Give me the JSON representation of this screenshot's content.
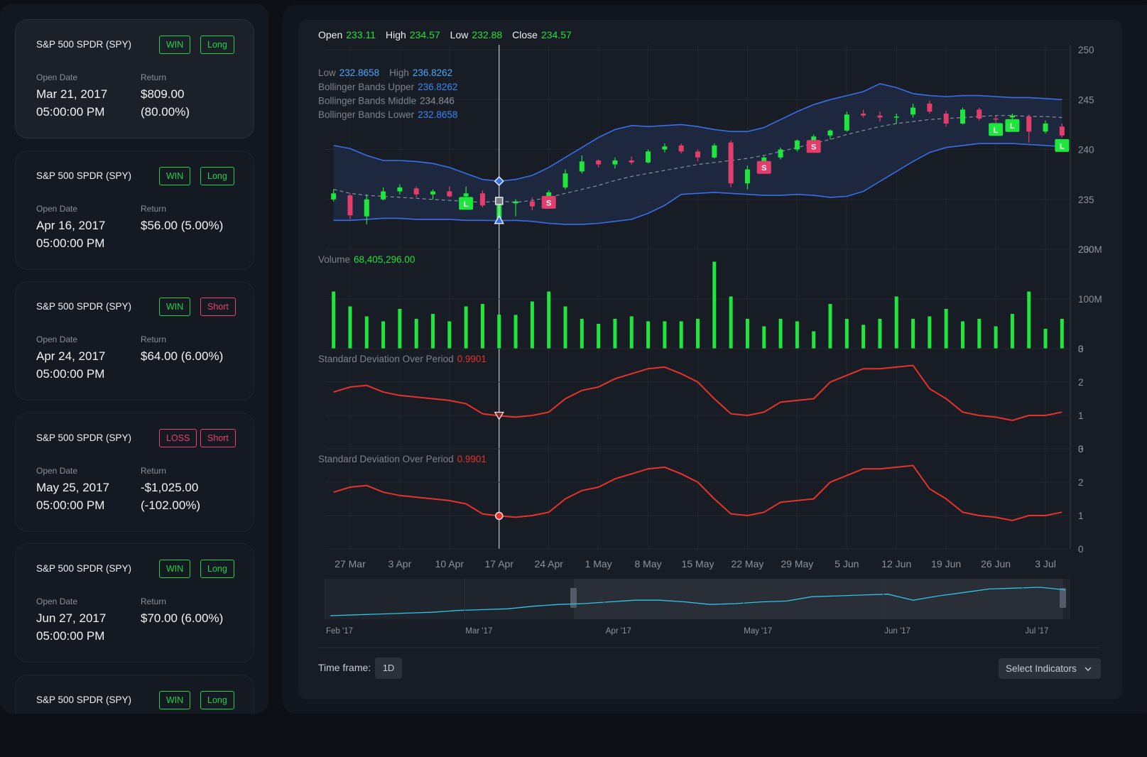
{
  "sidebar": {
    "trades": [
      {
        "instrument": "S&P 500 SPDR (SPY)",
        "result": "WIN",
        "result_color": "#22d34a",
        "side": "Long",
        "side_color": "#22d34a",
        "open_date_label": "Open Date",
        "date": "Mar 21, 2017",
        "time": "05:00:00 PM",
        "return_label": "Return",
        "return": "$809.00 (80.00%)"
      },
      {
        "instrument": "S&P 500 SPDR (SPY)",
        "result": "WIN",
        "result_color": "#22d34a",
        "side": "Long",
        "side_color": "#22d34a",
        "open_date_label": "Open Date",
        "date": "Apr 16, 2017",
        "time": "05:00:00 PM",
        "return_label": "Return",
        "return": "$56.00 (5.00%)"
      },
      {
        "instrument": "S&P 500 SPDR (SPY)",
        "result": "WIN",
        "result_color": "#22d34a",
        "side": "Short",
        "side_color": "#e8426e",
        "open_date_label": "Open Date",
        "date": "Apr 24, 2017",
        "time": "05:00:00 PM",
        "return_label": "Return",
        "return": "$64.00 (6.00%)"
      },
      {
        "instrument": "S&P 500 SPDR (SPY)",
        "result": "LOSS",
        "result_color": "#e8426e",
        "side": "Short",
        "side_color": "#e8426e",
        "open_date_label": "Open Date",
        "date": "May 25, 2017",
        "time": "05:00:00 PM",
        "return_label": "Return",
        "return": "-$1,025.00 (-102.00%)"
      },
      {
        "instrument": "S&P 500 SPDR (SPY)",
        "result": "WIN",
        "result_color": "#22d34a",
        "side": "Long",
        "side_color": "#22d34a",
        "open_date_label": "Open Date",
        "date": "Jun 27, 2017",
        "time": "05:00:00 PM",
        "return_label": "Return",
        "return": "$70.00 (6.00%)"
      },
      {
        "instrument": "S&P 500 SPDR (SPY)",
        "result": "WIN",
        "result_color": "#22d34a",
        "side": "Long",
        "side_color": "#22d34a"
      }
    ]
  },
  "chart_data": [
    {
      "type": "candlestick",
      "ohlc_labels": [
        "Open",
        "High",
        "Low",
        "Close"
      ],
      "band_labels": [
        "Low",
        "High"
      ],
      "categories": [
        null,
        "27 Mar",
        null,
        null,
        "3 Apr",
        null,
        null,
        "10 Apr",
        null,
        null,
        "17 Apr",
        null,
        null,
        "24 Apr",
        null,
        null,
        "1 May",
        null,
        null,
        "8 May",
        null,
        null,
        "15 May",
        null,
        null,
        "22 May",
        null,
        null,
        "29 May",
        null,
        null,
        "5 Jun",
        null,
        null,
        "12 Jun",
        null,
        null,
        "19 Jun",
        null,
        null,
        "26 Jun",
        null,
        null,
        "3 Jul",
        null
      ],
      "ohlc": [
        [
          235.0,
          236.0,
          234.8,
          235.6
        ],
        [
          235.4,
          235.6,
          233.0,
          233.4
        ],
        [
          233.3,
          235.5,
          232.5,
          235.0
        ],
        [
          235.0,
          236.2,
          234.9,
          235.8
        ],
        [
          235.8,
          236.5,
          235.5,
          236.2
        ],
        [
          236.1,
          236.3,
          235.2,
          235.5
        ],
        [
          235.5,
          236.0,
          235.0,
          235.8
        ],
        [
          235.8,
          236.3,
          235.2,
          235.3
        ],
        [
          235.3,
          236.3,
          234.9,
          235.6
        ],
        [
          235.6,
          235.9,
          234.2,
          234.4
        ],
        [
          233.11,
          234.57,
          232.88,
          234.57
        ],
        [
          234.6,
          235.0,
          233.3,
          234.8
        ],
        [
          234.8,
          235.2,
          233.9,
          234.3
        ],
        [
          234.3,
          235.9,
          234.1,
          235.7
        ],
        [
          236.2,
          238.0,
          236.0,
          237.6
        ],
        [
          237.8,
          239.4,
          237.6,
          238.8
        ],
        [
          238.9,
          239.0,
          238.2,
          238.5
        ],
        [
          238.5,
          239.2,
          238.1,
          238.9
        ],
        [
          238.9,
          239.3,
          238.5,
          238.7
        ],
        [
          238.7,
          240.0,
          238.6,
          239.8
        ],
        [
          240.0,
          240.6,
          239.7,
          240.3
        ],
        [
          240.4,
          240.6,
          239.6,
          239.8
        ],
        [
          239.8,
          240.0,
          238.8,
          239.2
        ],
        [
          239.2,
          240.6,
          239.1,
          240.4
        ],
        [
          240.7,
          240.9,
          236.2,
          236.6
        ],
        [
          236.6,
          238.4,
          236.0,
          238.0
        ],
        [
          238.0,
          239.3,
          237.8,
          239.2
        ],
        [
          239.2,
          240.2,
          239.0,
          240.0
        ],
        [
          240.0,
          241.0,
          239.8,
          240.9
        ],
        [
          240.8,
          241.5,
          240.6,
          241.3
        ],
        [
          241.4,
          242.0,
          241.0,
          241.9
        ],
        [
          241.9,
          243.8,
          241.8,
          243.5
        ],
        [
          243.6,
          244.0,
          243.2,
          243.4
        ],
        [
          243.4,
          243.8,
          242.8,
          243.2
        ],
        [
          243.2,
          243.6,
          242.6,
          243.3
        ],
        [
          243.5,
          244.6,
          243.2,
          244.2
        ],
        [
          244.6,
          244.9,
          243.6,
          243.8
        ],
        [
          243.6,
          243.9,
          242.3,
          242.6
        ],
        [
          242.6,
          244.2,
          242.5,
          244.0
        ],
        [
          244.0,
          244.2,
          242.9,
          243.1
        ],
        [
          243.1,
          243.4,
          242.6,
          243.0
        ],
        [
          243.2,
          243.6,
          242.8,
          243.4
        ],
        [
          243.3,
          243.5,
          240.7,
          241.8
        ],
        [
          241.8,
          242.9,
          241.6,
          242.6
        ],
        [
          242.3,
          242.6,
          241.2,
          241.4
        ]
      ],
      "up_color": "#1ee63c",
      "down_color": "#e33d6c",
      "series": [
        {
          "name": "Bollinger Bands Upper",
          "color": "#3a6ee8",
          "values": [
            240.4,
            240.1,
            239.4,
            238.9,
            238.9,
            238.8,
            238.6,
            238.2,
            237.6,
            237.0,
            236.8262,
            237.0,
            237.4,
            238.2,
            239.2,
            240.2,
            241.2,
            242.0,
            242.4,
            242.3,
            242.4,
            242.5,
            242.3,
            242.0,
            241.8,
            241.8,
            242.2,
            243.0,
            243.8,
            244.5,
            245.0,
            245.4,
            245.8,
            246.6,
            246.2,
            245.6,
            245.4,
            245.3,
            245.4,
            245.4,
            245.3,
            245.2,
            245.2,
            245.1,
            245.0
          ]
        },
        {
          "name": "Bollinger Bands Middle",
          "color": "#8a8f98",
          "values": [
            236.0,
            235.6,
            235.4,
            235.3,
            235.2,
            235.1,
            235.0,
            234.9,
            234.8,
            234.7,
            234.846,
            234.7,
            234.9,
            235.2,
            235.6,
            236.0,
            236.4,
            236.9,
            237.3,
            237.6,
            237.9,
            238.2,
            238.5,
            238.7,
            238.9,
            239.1,
            239.4,
            239.8,
            240.2,
            240.6,
            241.0,
            241.5,
            241.9,
            242.3,
            242.6,
            242.8,
            243.0,
            243.1,
            243.2,
            243.3,
            243.4,
            243.4,
            243.3,
            243.3,
            243.2
          ]
        },
        {
          "name": "Bollinger Bands Lower",
          "color": "#3a6ee8",
          "values": [
            232.9,
            232.9,
            233.0,
            233.1,
            233.1,
            233.0,
            233.0,
            233.0,
            232.9,
            232.9,
            232.8658,
            232.9,
            232.8,
            232.6,
            232.5,
            232.5,
            232.6,
            232.8,
            233.0,
            233.6,
            234.4,
            235.5,
            235.6,
            235.7,
            235.6,
            235.5,
            235.4,
            235.4,
            235.5,
            235.4,
            235.2,
            235.3,
            235.8,
            236.8,
            237.8,
            238.8,
            239.7,
            240.2,
            240.4,
            240.6,
            240.6,
            240.6,
            240.5,
            240.4,
            240.3
          ]
        }
      ],
      "markers": [
        {
          "index": 8,
          "label": "L"
        },
        {
          "index": 13,
          "label": "S"
        },
        {
          "index": 26,
          "label": "S"
        },
        {
          "index": 29,
          "label": "S"
        },
        {
          "index": 40,
          "label": "L"
        },
        {
          "index": 41,
          "label": "L"
        },
        {
          "index": 44,
          "label": "L"
        }
      ],
      "crosshair_index": 10,
      "ylim": [
        230,
        250
      ],
      "yticks": [
        230,
        235,
        240,
        245,
        250
      ],
      "grid": true
    },
    {
      "type": "bar",
      "title": "Volume",
      "color": "#1ee63c",
      "value_label": "68,405,296.00",
      "values": [
        115000000,
        85000000,
        65000000,
        55000000,
        80000000,
        60000000,
        70000000,
        55000000,
        85000000,
        90000000,
        68405296,
        68000000,
        95000000,
        115000000,
        85000000,
        60000000,
        50000000,
        60000000,
        65000000,
        55000000,
        55000000,
        55000000,
        60000000,
        175000000,
        105000000,
        60000000,
        45000000,
        60000000,
        55000000,
        35000000,
        90000000,
        60000000,
        48000000,
        60000000,
        105000000,
        60000000,
        65000000,
        80000000,
        55000000,
        60000000,
        45000000,
        70000000,
        115000000,
        40000000,
        60000000
      ],
      "ylim": [
        0,
        200000000
      ],
      "yticks": [
        0,
        {
          "value": 100000000,
          "label": "100M"
        },
        {
          "value": 200000000,
          "label": "200M"
        }
      ]
    },
    {
      "type": "line",
      "title": "Standard Deviation Over Period",
      "color": "#e5332b",
      "values": [
        1.7,
        1.85,
        1.9,
        1.7,
        1.6,
        1.55,
        1.5,
        1.45,
        1.35,
        1.05,
        0.9901,
        0.95,
        1.0,
        1.1,
        1.5,
        1.75,
        1.85,
        2.1,
        2.25,
        2.4,
        2.45,
        2.25,
        2.0,
        1.5,
        1.05,
        1.0,
        1.1,
        1.4,
        1.45,
        1.5,
        2.0,
        2.2,
        2.4,
        2.4,
        2.45,
        2.5,
        1.8,
        1.5,
        1.1,
        1.0,
        0.95,
        0.85,
        1.0,
        1.0,
        1.1
      ],
      "ylim": [
        0,
        3
      ],
      "yticks": [
        0,
        1,
        2,
        3
      ]
    },
    {
      "type": "line",
      "title": "Standard Deviation Over Period",
      "color": "#e5332b",
      "values": [
        1.7,
        1.85,
        1.9,
        1.7,
        1.6,
        1.55,
        1.5,
        1.45,
        1.35,
        1.05,
        0.9901,
        0.95,
        1.0,
        1.1,
        1.5,
        1.75,
        1.85,
        2.1,
        2.25,
        2.4,
        2.45,
        2.25,
        2.0,
        1.5,
        1.05,
        1.0,
        1.1,
        1.4,
        1.45,
        1.5,
        2.0,
        2.2,
        2.4,
        2.4,
        2.45,
        2.5,
        1.8,
        1.5,
        1.1,
        1.0,
        0.95,
        0.85,
        1.0,
        1.0,
        1.1
      ],
      "ylim": [
        0,
        3
      ],
      "yticks": [
        0,
        1,
        2,
        3
      ]
    }
  ],
  "navigator": {
    "labels": [
      "Feb '17",
      "Mar '17",
      "Apr '17",
      "May '17",
      "Jun '17",
      "Jul '17"
    ],
    "values": [
      227.5,
      228,
      228.5,
      229,
      229.5,
      230.5,
      231,
      231.5,
      233,
      234,
      234.5,
      235.5,
      236.5,
      236.5,
      235.5,
      234,
      234.5,
      235.5,
      236,
      238.5,
      239,
      239.5,
      240,
      236.5,
      239,
      241,
      243,
      243.5,
      244,
      242.5
    ]
  },
  "footer": {
    "timeframe_label": "Time frame:",
    "timeframe": "1D",
    "indicators": "Select Indicators"
  }
}
